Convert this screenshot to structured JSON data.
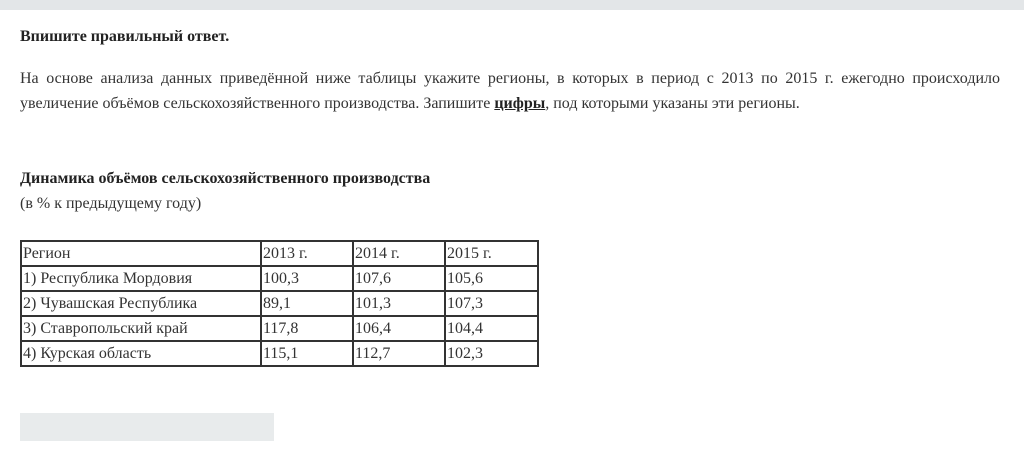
{
  "task": {
    "title": "Впишите правильный ответ.",
    "text_before": "На основе анализа данных приведённой ниже таблицы укажите регионы, в которых в период с 2013 по 2015 г. ежегодно происходило увеличение объёмов сельскохозяйственного производства. Запишите ",
    "text_emphasis": "цифры",
    "text_after": ", под которыми указаны эти регионы."
  },
  "table": {
    "title": "Динамика объёмов сельскохозяйственного производства",
    "subtitle": "(в % к предыдущему году)",
    "headers": [
      "Регион",
      "2013 г.",
      "2014 г.",
      "2015 г."
    ],
    "rows": [
      [
        "1) Республика Мордовия",
        "100,3",
        "107,6",
        "105,6"
      ],
      [
        "2) Чувашская Республика",
        "89,1",
        "101,3",
        "107,3"
      ],
      [
        "3) Ставропольский край",
        "117,8",
        "106,4",
        "104,4"
      ],
      [
        "4) Курская область",
        "115,1",
        "112,7",
        "102,3"
      ]
    ]
  },
  "answer": {
    "value": "",
    "placeholder": ""
  }
}
